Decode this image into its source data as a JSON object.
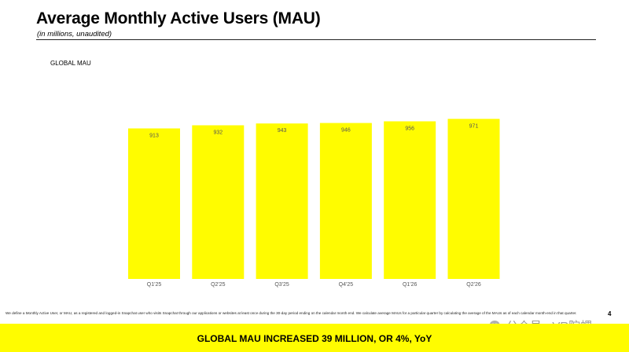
{
  "header": {
    "title": "Average Monthly Active Users (MAU)",
    "subtitle": "(in millions, unaudited)"
  },
  "chart_data": {
    "type": "bar",
    "title": "GLOBAL MAU",
    "categories": [
      "Q1'25",
      "Q2'25",
      "Q3'25",
      "Q4'25",
      "Q1'26",
      "Q2'26"
    ],
    "values": [
      913,
      932,
      943,
      946,
      956,
      971
    ],
    "value_labels": [
      "913",
      "932",
      "943",
      "946",
      "956",
      "971"
    ],
    "xlabel": "",
    "ylabel": "",
    "ylim": [
      0,
      1020
    ],
    "bar_color": "#FFFC00",
    "grid": false
  },
  "footer": {
    "footnote": "We define a Monthly Active User, or MAU, as a registered and logged-in Snapchat user who visits Snapchat through our applications or websites at least once during the 30-day period ending on the calendar month end. We calculate average MAUs for a particular quarter by calculating the average of the MAUs as of each calendar month-end in that quarter.",
    "page_number": "4",
    "banner": "GLOBAL MAU INCREASED 39 MILLION, OR 4%, YoY"
  },
  "watermark": {
    "text": "公众号 · VR陀螺",
    "icon": "wechat-icon"
  }
}
